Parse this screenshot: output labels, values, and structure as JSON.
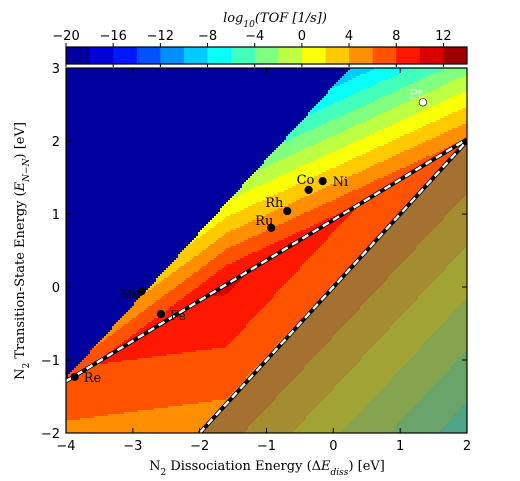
{
  "chart_data": {
    "type": "heatmap",
    "title": "",
    "xlabel": "N₂ Dissociation Energy (ΔE_diss) [eV]",
    "ylabel": "N₂ Transition-State Energy (E_N−N) [eV]",
    "xlim": [
      -4,
      2
    ],
    "ylim": [
      -2,
      3
    ],
    "x_ticks": [
      -4,
      -3,
      -2,
      -1,
      0,
      1,
      2
    ],
    "y_ticks": [
      -2,
      -1,
      0,
      1,
      2,
      3
    ],
    "colorbar": {
      "label": "log10(TOF [1/s])",
      "range": [
        -20,
        14
      ],
      "ticks": [
        -20,
        -16,
        -12,
        -8,
        -4,
        0,
        4,
        8,
        12
      ],
      "levels": 17
    },
    "scaling_line": {
      "slope": 0.5526,
      "intercept": 0.92
    },
    "boundary_line": {
      "slope": 1.0,
      "intercept": 0.0
    },
    "points": [
      {
        "label": "Pt",
        "x": 1.34,
        "y": 2.53,
        "marker_color": "#ffffff",
        "label_color": "#ffffff"
      },
      {
        "label": "Ni",
        "x": -0.16,
        "y": 1.45,
        "marker_color": "#000000",
        "label_color": "#000000"
      },
      {
        "label": "Co",
        "x": -0.37,
        "y": 1.33,
        "marker_color": "#000000",
        "label_color": "#000000"
      },
      {
        "label": "Rh",
        "x": -0.69,
        "y": 1.04,
        "marker_color": "#000000",
        "label_color": "#000000"
      },
      {
        "label": "Ru",
        "x": -0.93,
        "y": 0.81,
        "marker_color": "#000000",
        "label_color": "#000000"
      },
      {
        "label": "Mo",
        "x": -2.87,
        "y": -0.06,
        "marker_color": "#000000",
        "label_color": "#000000"
      },
      {
        "label": "Fe",
        "x": -2.58,
        "y": -0.37,
        "marker_color": "#000000",
        "label_color": "#000000"
      },
      {
        "label": "Re",
        "x": -3.87,
        "y": -1.23,
        "marker_color": "#000000",
        "label_color": "#000000"
      }
    ]
  }
}
